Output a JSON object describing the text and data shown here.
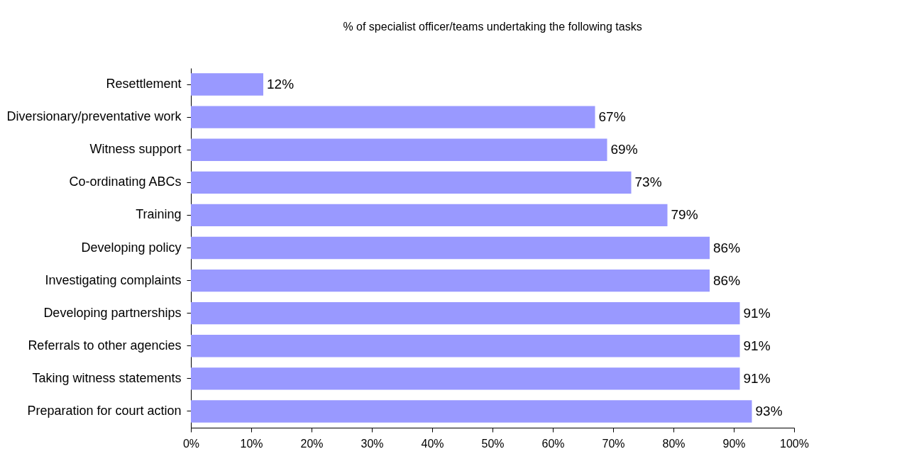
{
  "chart_data": {
    "type": "bar",
    "orientation": "horizontal",
    "title": "% of specialist officer/teams undertaking the following tasks",
    "categories": [
      "Resettlement",
      "Diversionary/preventative work",
      "Witness support",
      "Co-ordinating ABCs",
      "Training",
      "Developing policy",
      "Investigating complaints",
      "Developing partnerships",
      "Referrals to other agencies",
      "Taking witness statements",
      "Preparation for court action"
    ],
    "values": [
      12,
      67,
      69,
      73,
      79,
      86,
      86,
      91,
      91,
      91,
      93
    ],
    "value_labels": [
      "12%",
      "67%",
      "69%",
      "73%",
      "79%",
      "86%",
      "86%",
      "91%",
      "91%",
      "91%",
      "93%"
    ],
    "color": "#9999ff",
    "xlim": [
      0,
      100
    ],
    "xticks": [
      {
        "value": 0,
        "label": "0%"
      },
      {
        "value": 10,
        "label": "10%"
      },
      {
        "value": 20,
        "label": "20%"
      },
      {
        "value": 30,
        "label": "30%"
      },
      {
        "value": 40,
        "label": "40%"
      },
      {
        "value": 50,
        "label": "50%"
      },
      {
        "value": 60,
        "label": "60%"
      },
      {
        "value": 70,
        "label": "70%"
      },
      {
        "value": 80,
        "label": "80%"
      },
      {
        "value": 90,
        "label": "90%"
      },
      {
        "value": 100,
        "label": "100%"
      }
    ],
    "grid": false
  }
}
